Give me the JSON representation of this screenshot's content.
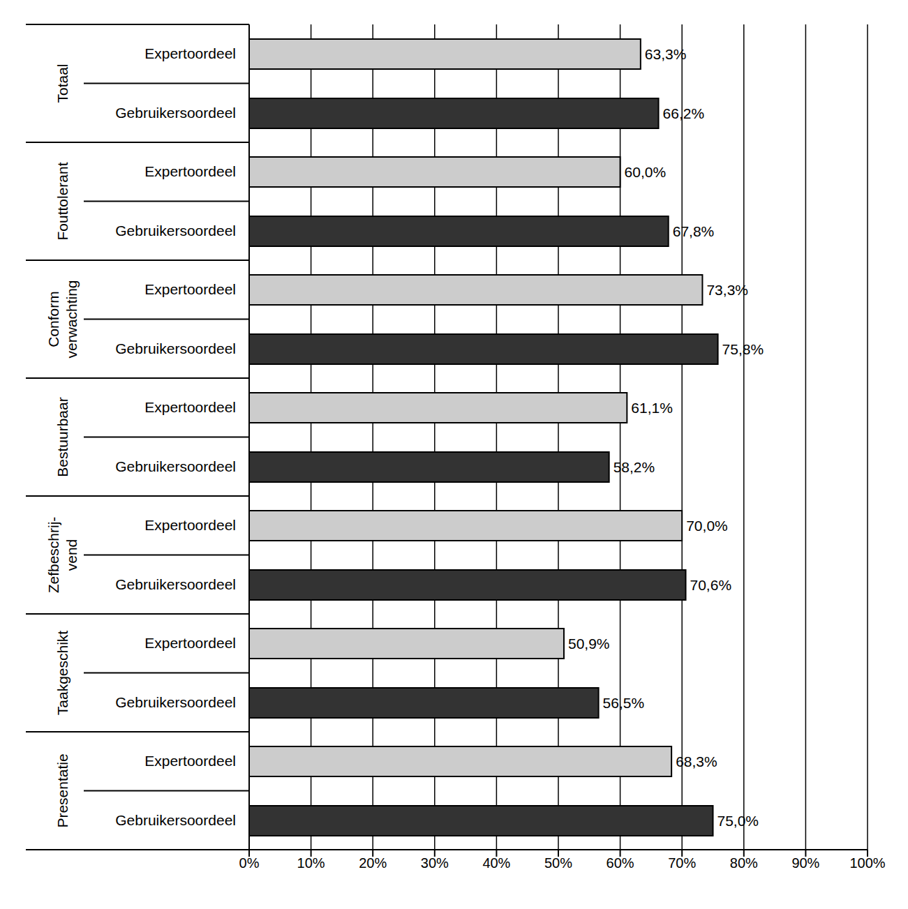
{
  "chart_data": {
    "type": "bar",
    "orientation": "horizontal",
    "grid": true,
    "data_labels": true,
    "categories": [
      "Totaal",
      "Fouttolerant",
      "Conform\nverwachting",
      "Bestuurbaar",
      "Zefbeschrij-\nvend",
      "Taakgeschikt",
      "Presentatie"
    ],
    "series": [
      {
        "name": "Expertoordeel",
        "color": "#cccccc",
        "values": [
          63.3,
          60.0,
          73.3,
          61.1,
          70.0,
          50.9,
          68.3
        ],
        "value_labels": [
          "63,3%",
          "60,0%",
          "73,3%",
          "61,1%",
          "70,0%",
          "50,9%",
          "68,3%"
        ]
      },
      {
        "name": "Gebruikersoordeel",
        "color": "#333333",
        "values": [
          66.2,
          67.8,
          75.8,
          58.2,
          70.6,
          56.5,
          75.0
        ],
        "value_labels": [
          "66,2%",
          "67,8%",
          "75,8%",
          "58,2%",
          "70,6%",
          "56,5%",
          "75,0%"
        ]
      }
    ],
    "xlim": [
      0,
      100
    ],
    "xticks": [
      {
        "value": 0,
        "label": "0%"
      },
      {
        "value": 10,
        "label": "10%"
      },
      {
        "value": 20,
        "label": "20%"
      },
      {
        "value": 30,
        "label": "30%"
      },
      {
        "value": 40,
        "label": "40%"
      },
      {
        "value": 50,
        "label": "50%"
      },
      {
        "value": 60,
        "label": "60%"
      },
      {
        "value": 70,
        "label": "70%"
      },
      {
        "value": 80,
        "label": "80%"
      },
      {
        "value": 90,
        "label": "90%"
      },
      {
        "value": 100,
        "label": "100%"
      }
    ]
  }
}
